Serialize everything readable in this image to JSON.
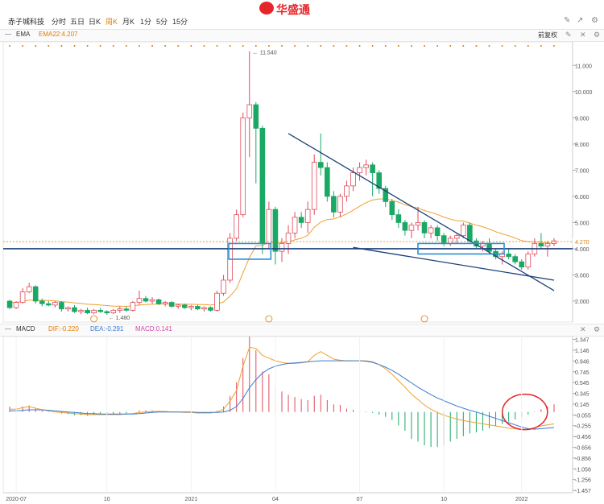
{
  "header": {
    "stock_name": "赤子城科技",
    "tabs": [
      {
        "label": "分时",
        "active": false
      },
      {
        "label": "五日",
        "active": false
      },
      {
        "label": "日K",
        "active": false
      },
      {
        "label": "周K",
        "active": true
      },
      {
        "label": "月K",
        "active": false
      },
      {
        "label": "1分",
        "active": false
      },
      {
        "label": "5分",
        "active": false
      },
      {
        "label": "15分",
        "active": false
      }
    ],
    "brand": "华盛通",
    "accent_color": "#e07a00",
    "brand_color": "#e5252a"
  },
  "main_panel": {
    "indicator": "EMA",
    "ema_label": "EMA22:4.207",
    "adjust_label": "前复权",
    "icons": [
      "pencil-icon",
      "share-icon",
      "settings-icon"
    ]
  },
  "macd_panel": {
    "indicator": "MACD",
    "dif_label": "DIF:-0.220",
    "dea_label": "DEA:-0.291",
    "macd_label": "MACD:0.141"
  },
  "chart_data": [
    {
      "type": "candlestick",
      "title": "",
      "ylim": [
        1.2,
        11.9
      ],
      "y_ticks": [
        "11.000",
        "10.000",
        "9.000",
        "8.000",
        "7.000",
        "6.000",
        "5.000",
        "4.000",
        "3.000",
        "2.000"
      ],
      "x_ticks": [
        "2020-07",
        "10",
        "2021",
        "04",
        "07",
        "10",
        "2022"
      ],
      "current_price_label": "4.270",
      "max_annotation": "11.540",
      "min_annotation": "1.480",
      "ema_name": "EMA22",
      "ema_color": "#f0a030",
      "up_color": "#e04a5a",
      "down_color": "#1aa865",
      "ohlc": [
        [
          2.0,
          2.05,
          1.7,
          1.75
        ],
        [
          1.75,
          2.0,
          1.7,
          1.95
        ],
        [
          1.95,
          2.5,
          1.9,
          2.35
        ],
        [
          2.35,
          2.7,
          2.3,
          2.55
        ],
        [
          2.55,
          2.6,
          1.9,
          2.0
        ],
        [
          2.0,
          2.1,
          1.8,
          1.9
        ],
        [
          1.9,
          2.0,
          1.8,
          1.85
        ],
        [
          1.85,
          2.0,
          1.75,
          1.95
        ],
        [
          1.95,
          2.0,
          1.6,
          1.7
        ],
        [
          1.7,
          1.8,
          1.6,
          1.75
        ],
        [
          1.75,
          1.85,
          1.55,
          1.6
        ],
        [
          1.6,
          1.7,
          1.5,
          1.65
        ],
        [
          1.65,
          1.75,
          1.5,
          1.55
        ],
        [
          1.55,
          1.7,
          1.5,
          1.65
        ],
        [
          1.65,
          1.75,
          1.55,
          1.6
        ],
        [
          1.6,
          1.65,
          1.48,
          1.55
        ],
        [
          1.55,
          1.7,
          1.5,
          1.65
        ],
        [
          1.65,
          1.8,
          1.55,
          1.7
        ],
        [
          1.7,
          1.8,
          1.6,
          1.65
        ],
        [
          1.65,
          2.0,
          1.6,
          1.95
        ],
        [
          1.95,
          2.4,
          1.85,
          2.1
        ],
        [
          2.1,
          2.2,
          1.95,
          2.0
        ],
        [
          2.0,
          2.15,
          1.9,
          2.05
        ],
        [
          2.05,
          2.1,
          1.85,
          1.9
        ],
        [
          1.9,
          2.0,
          1.8,
          1.95
        ],
        [
          1.95,
          2.0,
          1.75,
          1.8
        ],
        [
          1.8,
          1.9,
          1.7,
          1.85
        ],
        [
          1.85,
          1.9,
          1.7,
          1.75
        ],
        [
          1.75,
          1.85,
          1.65,
          1.8
        ],
        [
          1.8,
          1.85,
          1.65,
          1.7
        ],
        [
          1.7,
          1.8,
          1.6,
          1.75
        ],
        [
          1.75,
          1.8,
          1.6,
          1.65
        ],
        [
          1.65,
          2.4,
          1.6,
          2.3
        ],
        [
          2.3,
          3.0,
          2.2,
          2.8
        ],
        [
          2.8,
          4.6,
          2.7,
          4.4
        ],
        [
          4.4,
          5.5,
          4.3,
          5.3
        ],
        [
          5.3,
          9.2,
          5.2,
          9.0
        ],
        [
          9.0,
          11.54,
          7.5,
          9.5
        ],
        [
          9.5,
          9.6,
          6.5,
          8.6
        ],
        [
          8.6,
          8.7,
          3.8,
          4.2
        ],
        [
          4.2,
          5.8,
          4.0,
          5.5
        ],
        [
          5.5,
          5.6,
          3.4,
          3.9
        ],
        [
          3.9,
          4.4,
          3.5,
          4.2
        ],
        [
          4.2,
          4.9,
          3.8,
          4.6
        ],
        [
          4.6,
          5.4,
          4.4,
          5.2
        ],
        [
          5.2,
          5.4,
          4.8,
          5.0
        ],
        [
          5.0,
          5.8,
          4.6,
          5.5
        ],
        [
          5.5,
          7.6,
          5.3,
          7.3
        ],
        [
          7.3,
          8.4,
          6.8,
          7.1
        ],
        [
          7.1,
          7.3,
          5.8,
          6.0
        ],
        [
          6.0,
          6.2,
          5.2,
          5.4
        ],
        [
          5.4,
          6.1,
          5.2,
          6.0
        ],
        [
          6.0,
          6.6,
          5.8,
          6.4
        ],
        [
          6.4,
          7.1,
          6.2,
          6.9
        ],
        [
          6.9,
          7.3,
          6.6,
          7.1
        ],
        [
          7.1,
          7.4,
          6.8,
          7.2
        ],
        [
          7.2,
          7.3,
          6.0,
          6.9
        ],
        [
          6.9,
          7.0,
          6.1,
          6.3
        ],
        [
          6.3,
          6.4,
          5.6,
          5.8
        ],
        [
          5.8,
          5.9,
          5.1,
          5.3
        ],
        [
          5.3,
          5.5,
          4.8,
          5.0
        ],
        [
          5.0,
          5.1,
          4.5,
          4.7
        ],
        [
          4.7,
          5.0,
          4.4,
          4.9
        ],
        [
          4.9,
          5.6,
          4.7,
          5.0
        ],
        [
          5.0,
          5.1,
          4.4,
          4.6
        ],
        [
          4.6,
          4.9,
          4.4,
          4.8
        ],
        [
          4.8,
          4.9,
          4.3,
          4.5
        ],
        [
          4.5,
          4.6,
          4.1,
          4.2
        ],
        [
          4.2,
          4.5,
          4.1,
          4.4
        ],
        [
          4.4,
          4.6,
          4.2,
          4.5
        ],
        [
          4.5,
          5.0,
          4.4,
          4.9
        ],
        [
          4.9,
          5.0,
          4.2,
          4.3
        ],
        [
          4.3,
          4.4,
          4.0,
          4.1
        ],
        [
          4.1,
          4.3,
          3.9,
          4.2
        ],
        [
          4.2,
          4.4,
          3.8,
          3.9
        ],
        [
          3.9,
          4.0,
          3.6,
          3.7
        ],
        [
          3.7,
          3.9,
          3.4,
          3.8
        ],
        [
          3.8,
          4.0,
          3.6,
          3.7
        ],
        [
          3.7,
          3.8,
          3.4,
          3.5
        ],
        [
          3.5,
          3.6,
          3.2,
          3.3
        ],
        [
          3.3,
          3.9,
          3.2,
          3.8
        ],
        [
          3.8,
          4.4,
          3.7,
          4.2
        ],
        [
          4.2,
          4.6,
          4.0,
          4.1
        ],
        [
          4.1,
          4.3,
          3.7,
          4.2
        ],
        [
          4.2,
          4.4,
          4.1,
          4.3
        ]
      ],
      "ema": [
        1.95,
        1.95,
        1.99,
        2.04,
        2.04,
        2.03,
        2.02,
        2.01,
        1.98,
        1.96,
        1.93,
        1.91,
        1.88,
        1.87,
        1.85,
        1.83,
        1.81,
        1.81,
        1.8,
        1.82,
        1.85,
        1.87,
        1.88,
        1.89,
        1.89,
        1.89,
        1.89,
        1.88,
        1.88,
        1.87,
        1.87,
        1.85,
        1.89,
        1.97,
        2.19,
        2.48,
        3.08,
        3.67,
        4.11,
        4.13,
        4.26,
        4.23,
        4.22,
        4.26,
        4.34,
        4.4,
        4.51,
        4.82,
        5.02,
        5.11,
        5.14,
        5.22,
        5.33,
        5.47,
        5.62,
        5.76,
        5.86,
        5.9,
        5.9,
        5.85,
        5.78,
        5.68,
        5.61,
        5.55,
        5.46,
        5.39,
        5.31,
        5.21,
        5.13,
        5.07,
        5.06,
        4.98,
        4.9,
        4.84,
        4.75,
        4.65,
        4.57,
        4.5,
        4.41,
        4.31,
        4.27,
        4.26,
        4.24,
        4.22,
        4.207
      ],
      "trend_lines": [
        {
          "from": [
            43.5,
            8.4
          ],
          "to": [
            84.5,
            2.4
          ]
        },
        {
          "from": [
            53.5,
            4.05
          ],
          "to": [
            84.5,
            2.8
          ]
        },
        {
          "level": 4.0
        }
      ],
      "highlight_boxes": [
        {
          "from": [
            34.3,
            4.2
          ],
          "to": [
            40.8,
            3.6
          ]
        },
        {
          "from": [
            63.5,
            4.2
          ],
          "to": [
            76.8,
            3.8
          ]
        }
      ]
    },
    {
      "type": "bar",
      "title": "",
      "ylim": [
        -1.5,
        1.4
      ],
      "y_ticks": [
        "1.347",
        "1.146",
        "0.946",
        "0.745",
        "0.545",
        "0.345",
        "0.145",
        "-0.055",
        "-0.255",
        "-0.456",
        "-0.656",
        "-0.856",
        "-1.056",
        "-1.256",
        "-1.457"
      ],
      "dif_color": "#f0a030",
      "dea_color": "#3a7bd5",
      "macd": [
        0.1,
        0.08,
        0.1,
        0.12,
        0.06,
        0.03,
        0.01,
        0.0,
        -0.03,
        -0.04,
        -0.06,
        -0.06,
        -0.07,
        -0.06,
        -0.05,
        -0.05,
        -0.04,
        -0.03,
        -0.03,
        0.0,
        0.03,
        0.03,
        0.03,
        0.02,
        0.01,
        0.0,
        0.0,
        -0.01,
        -0.01,
        -0.02,
        -0.02,
        -0.02,
        0.02,
        0.1,
        0.3,
        0.55,
        1.0,
        1.4,
        1.15,
        0.75,
        0.7,
        0.45,
        0.38,
        0.32,
        0.28,
        0.24,
        0.22,
        0.3,
        0.32,
        0.22,
        0.14,
        0.13,
        0.06,
        0.04,
        0.02,
        0.01,
        -0.02,
        -0.05,
        -0.09,
        -0.15,
        -0.25,
        -0.35,
        -0.5,
        -0.55,
        -0.62,
        -0.65,
        -0.65,
        -0.62,
        -0.55,
        -0.5,
        -0.45,
        -0.4,
        -0.38,
        -0.35,
        -0.3,
        -0.26,
        -0.22,
        -0.18,
        -0.14,
        -0.1,
        -0.05,
        0.01,
        0.05,
        0.1,
        0.141
      ],
      "dif": [
        0.05,
        0.05,
        0.08,
        0.1,
        0.07,
        0.04,
        0.02,
        0.0,
        -0.01,
        -0.02,
        -0.03,
        -0.04,
        -0.05,
        -0.05,
        -0.05,
        -0.05,
        -0.05,
        -0.05,
        -0.04,
        -0.03,
        -0.01,
        0.0,
        0.01,
        0.01,
        0.01,
        0.0,
        0.0,
        -0.01,
        -0.01,
        -0.02,
        -0.02,
        -0.02,
        0.0,
        0.05,
        0.2,
        0.4,
        0.85,
        1.2,
        1.18,
        1.05,
        1.0,
        0.95,
        0.92,
        0.9,
        0.9,
        0.91,
        0.93,
        1.05,
        1.12,
        1.05,
        0.98,
        0.96,
        0.95,
        0.95,
        0.95,
        0.95,
        0.93,
        0.88,
        0.8,
        0.7,
        0.58,
        0.46,
        0.33,
        0.23,
        0.13,
        0.05,
        -0.01,
        -0.06,
        -0.1,
        -0.13,
        -0.16,
        -0.18,
        -0.2,
        -0.22,
        -0.24,
        -0.26,
        -0.28,
        -0.3,
        -0.31,
        -0.33,
        -0.32,
        -0.29,
        -0.26,
        -0.24,
        -0.22
      ],
      "dea": [
        0.02,
        0.02,
        0.03,
        0.04,
        0.04,
        0.04,
        0.03,
        0.02,
        0.01,
        0.0,
        -0.01,
        -0.02,
        -0.03,
        -0.03,
        -0.04,
        -0.04,
        -0.04,
        -0.04,
        -0.04,
        -0.04,
        -0.03,
        -0.02,
        -0.01,
        0.0,
        0.0,
        0.0,
        0.0,
        0.0,
        0.0,
        -0.01,
        -0.01,
        -0.01,
        -0.01,
        0.0,
        0.03,
        0.1,
        0.25,
        0.45,
        0.6,
        0.72,
        0.8,
        0.85,
        0.88,
        0.9,
        0.91,
        0.92,
        0.93,
        0.94,
        0.95,
        0.95,
        0.95,
        0.95,
        0.95,
        0.95,
        0.95,
        0.94,
        0.92,
        0.88,
        0.83,
        0.77,
        0.7,
        0.62,
        0.54,
        0.46,
        0.39,
        0.32,
        0.26,
        0.21,
        0.16,
        0.11,
        0.07,
        0.03,
        0.0,
        -0.04,
        -0.08,
        -0.12,
        -0.16,
        -0.2,
        -0.24,
        -0.28,
        -0.31,
        -0.32,
        -0.31,
        -0.3,
        -0.291
      ]
    }
  ]
}
